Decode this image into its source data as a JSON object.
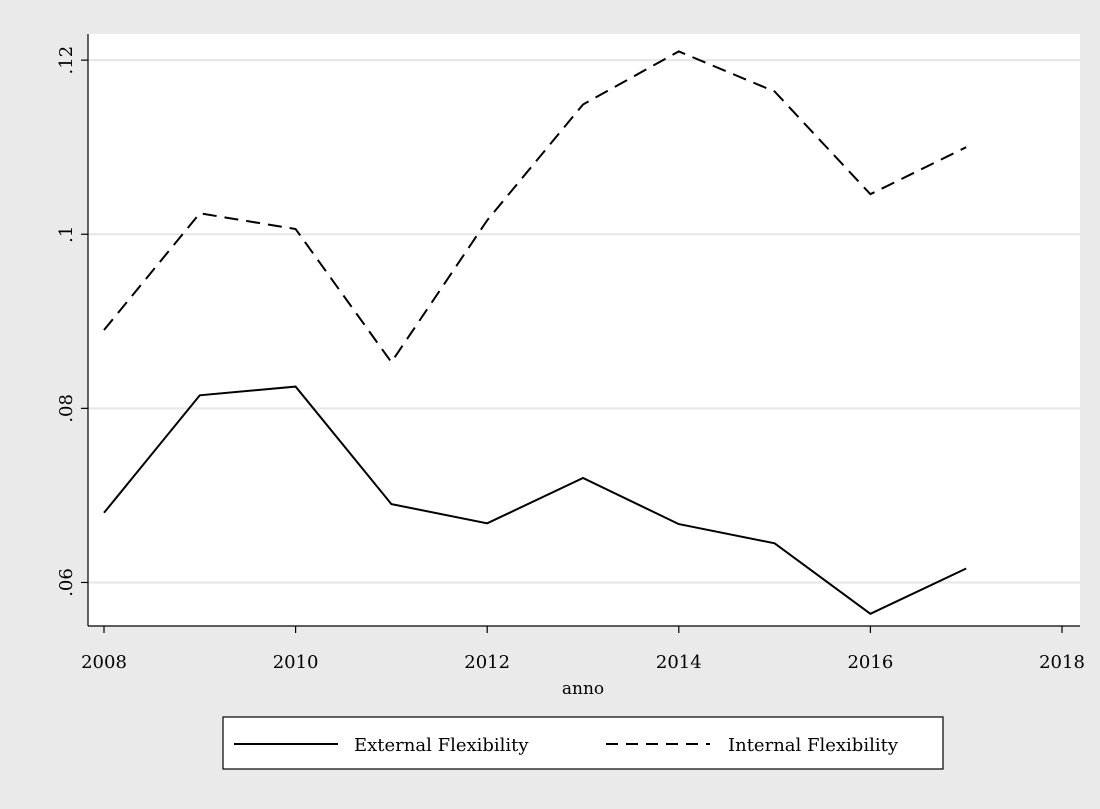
{
  "chart_data": {
    "type": "line",
    "title": "",
    "xlabel": "anno",
    "ylabel": "",
    "x": [
      2008,
      2009,
      2010,
      2011,
      2012,
      2013,
      2014,
      2015,
      2016,
      2017
    ],
    "xlim": [
      2008,
      2018
    ],
    "ylim": [
      0.055,
      0.123
    ],
    "xticks": [
      2008,
      2010,
      2012,
      2014,
      2016,
      2018
    ],
    "xtick_labels": [
      "2008",
      "2010",
      "2012",
      "2014",
      "2016",
      "2018"
    ],
    "yticks": [
      0.06,
      0.08,
      0.1,
      0.12
    ],
    "ytick_labels": [
      ".06",
      ".08",
      ".1",
      ".12"
    ],
    "grid": true,
    "legend_position": "bottom",
    "series": [
      {
        "name": "External Flexibility",
        "style": "solid",
        "values": [
          0.068,
          0.0815,
          0.0825,
          0.069,
          0.0668,
          0.072,
          0.0667,
          0.0645,
          0.0564,
          0.0616
        ]
      },
      {
        "name": "Internal Flexibility",
        "style": "dashed",
        "values": [
          0.089,
          0.1024,
          0.1006,
          0.0853,
          0.1016,
          0.1149,
          0.121,
          0.1164,
          0.1046,
          0.11
        ]
      }
    ],
    "colors": {
      "background": "#eaeaea",
      "plot_background": "#ffffff",
      "grid": "#e6e6e6",
      "line": "#000000"
    }
  }
}
